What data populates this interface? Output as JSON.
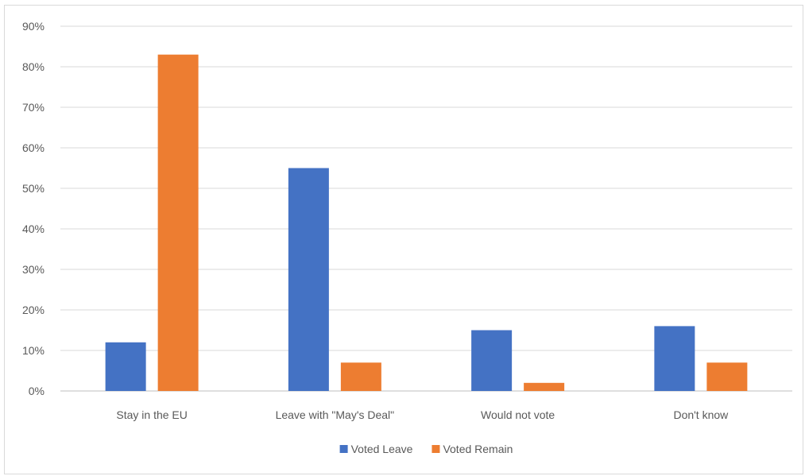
{
  "chart_data": {
    "type": "bar",
    "categories": [
      "Stay in the EU",
      "Leave with \"May's Deal\"",
      "Would not vote",
      "Don't know"
    ],
    "series": [
      {
        "name": "Voted Leave",
        "color": "#4472c4",
        "values": [
          12,
          55,
          15,
          16
        ]
      },
      {
        "name": "Voted Remain",
        "color": "#ed7d31",
        "values": [
          83,
          7,
          2,
          7
        ]
      }
    ],
    "ylim": [
      0,
      90
    ],
    "ytick_step": 10,
    "ytick_format": "{v}%",
    "grid": true,
    "legend_position": "bottom",
    "title": "",
    "xlabel": "",
    "ylabel": ""
  }
}
